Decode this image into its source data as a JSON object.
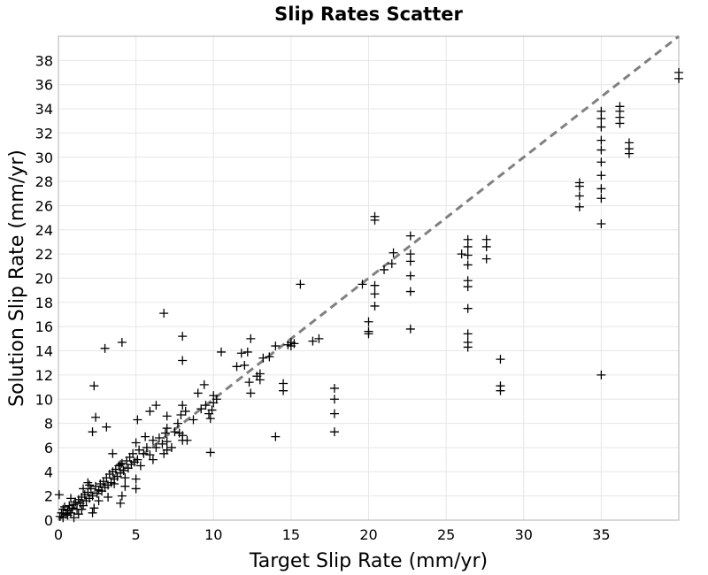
{
  "chart_data": {
    "type": "scatter",
    "title": "Slip Rates Scatter",
    "xlabel": "Target Slip Rate (mm/yr)",
    "ylabel": "Solution Slip Rate (mm/yr)",
    "xlim": [
      0,
      40
    ],
    "ylim": [
      0,
      40
    ],
    "xticks": [
      0,
      5,
      10,
      15,
      20,
      25,
      30,
      35
    ],
    "yticks": [
      0,
      2,
      4,
      6,
      8,
      10,
      12,
      14,
      16,
      18,
      20,
      22,
      24,
      26,
      28,
      30,
      32,
      34,
      36,
      38
    ],
    "grid": true,
    "marker": "+",
    "marker_color": "#000000",
    "reference_line": {
      "style": "dashed",
      "color": "#808080",
      "from": [
        0,
        0
      ],
      "to": [
        40,
        40
      ]
    },
    "points": [
      [
        0.1,
        0.3
      ],
      [
        0.2,
        0.6
      ],
      [
        0.3,
        0.9
      ],
      [
        0.4,
        1.1
      ],
      [
        0.5,
        0.5
      ],
      [
        0.6,
        0.8
      ],
      [
        0.7,
        1.2
      ],
      [
        0.8,
        0.6
      ],
      [
        0.9,
        1.0
      ],
      [
        1.0,
        1.3
      ],
      [
        1.1,
        1.5
      ],
      [
        1.2,
        0.9
      ],
      [
        1.3,
        1.7
      ],
      [
        1.4,
        1.4
      ],
      [
        1.5,
        1.9
      ],
      [
        1.6,
        1.2
      ],
      [
        1.7,
        2.1
      ],
      [
        1.8,
        1.6
      ],
      [
        1.9,
        2.3
      ],
      [
        2.0,
        1.8
      ],
      [
        2.1,
        2.6
      ],
      [
        2.2,
        2.0
      ],
      [
        2.3,
        1.0
      ],
      [
        2.4,
        2.8
      ],
      [
        2.5,
        2.2
      ],
      [
        2.6,
        2.5
      ],
      [
        2.7,
        3.0
      ],
      [
        2.8,
        2.4
      ],
      [
        2.9,
        3.2
      ],
      [
        3.0,
        2.7
      ],
      [
        3.1,
        3.5
      ],
      [
        3.2,
        2.9
      ],
      [
        3.3,
        3.8
      ],
      [
        3.4,
        3.1
      ],
      [
        3.5,
        4.0
      ],
      [
        3.6,
        3.4
      ],
      [
        3.7,
        4.2
      ],
      [
        3.8,
        3.6
      ],
      [
        3.9,
        4.5
      ],
      [
        4.0,
        3.9
      ],
      [
        4.1,
        4.7
      ],
      [
        4.2,
        4.1
      ],
      [
        4.3,
        3.5
      ],
      [
        4.4,
        4.9
      ],
      [
        4.5,
        4.3
      ],
      [
        4.6,
        5.2
      ],
      [
        4.7,
        4.6
      ],
      [
        4.8,
        5.5
      ],
      [
        4.9,
        4.8
      ],
      [
        5.0,
        6.4
      ],
      [
        5.0,
        2.6
      ],
      [
        5.0,
        3.4
      ],
      [
        5.1,
        5.0
      ],
      [
        5.2,
        5.8
      ],
      [
        5.3,
        4.5
      ],
      [
        5.5,
        5.5
      ],
      [
        5.7,
        6.0
      ],
      [
        5.9,
        5.4
      ],
      [
        6.1,
        6.6
      ],
      [
        6.3,
        6.0
      ],
      [
        6.5,
        6.8
      ],
      [
        6.7,
        6.3
      ],
      [
        6.9,
        7.2
      ],
      [
        7.0,
        6.5
      ],
      [
        7.0,
        8.6
      ],
      [
        7.0,
        7.6
      ],
      [
        7.0,
        5.8
      ],
      [
        6.8,
        5.5
      ],
      [
        7.5,
        7.3
      ],
      [
        7.7,
        8.0
      ],
      [
        7.9,
        8.7
      ],
      [
        8.0,
        9.5
      ],
      [
        8.0,
        7.0
      ],
      [
        8.0,
        6.6
      ],
      [
        7.8,
        7.2
      ],
      [
        8.2,
        9.0
      ],
      [
        8.7,
        8.3
      ],
      [
        9.2,
        9.2
      ],
      [
        9.5,
        9.5
      ],
      [
        9.7,
        8.8
      ],
      [
        9.9,
        9.1
      ],
      [
        10.0,
        10.3
      ],
      [
        10.0,
        9.7
      ],
      [
        9.8,
        8.4
      ],
      [
        10.2,
        10.0
      ],
      [
        0.05,
        2.1
      ],
      [
        0.3,
        0.2
      ],
      [
        0.6,
        0.4
      ],
      [
        1.5,
        0.9
      ],
      [
        2.2,
        0.6
      ],
      [
        2.4,
        8.5
      ],
      [
        2.3,
        11.1
      ],
      [
        2.2,
        7.3
      ],
      [
        3.0,
        14.2
      ],
      [
        3.1,
        7.7
      ],
      [
        4.1,
        14.7
      ],
      [
        4.0,
        1.4
      ],
      [
        4.1,
        2.0
      ],
      [
        4.0,
        4.6
      ],
      [
        6.8,
        17.1
      ],
      [
        8.0,
        15.2
      ],
      [
        8.0,
        13.2
      ],
      [
        9.8,
        5.6
      ],
      [
        10.5,
        13.9
      ],
      [
        11.8,
        13.8
      ],
      [
        12.2,
        13.9
      ],
      [
        12.4,
        15.0
      ],
      [
        12.0,
        12.8
      ],
      [
        12.3,
        11.4
      ],
      [
        12.4,
        10.5
      ],
      [
        12.8,
        11.9
      ],
      [
        13.0,
        12.1
      ],
      [
        13.0,
        11.6
      ],
      [
        13.2,
        13.4
      ],
      [
        13.6,
        13.5
      ],
      [
        14.0,
        14.4
      ],
      [
        14.0,
        6.9
      ],
      [
        14.5,
        11.3
      ],
      [
        14.5,
        10.7
      ],
      [
        14.8,
        14.5
      ],
      [
        15.0,
        14.4
      ],
      [
        15.0,
        14.7
      ],
      [
        15.2,
        14.6
      ],
      [
        15.6,
        19.5
      ],
      [
        16.4,
        14.8
      ],
      [
        16.8,
        15.0
      ],
      [
        17.8,
        10.9
      ],
      [
        17.8,
        10.0
      ],
      [
        17.8,
        8.8
      ],
      [
        17.8,
        7.3
      ],
      [
        19.6,
        19.5
      ],
      [
        20.0,
        16.4
      ],
      [
        20.0,
        15.6
      ],
      [
        20.0,
        15.4
      ],
      [
        20.4,
        25.1
      ],
      [
        20.4,
        24.8
      ],
      [
        20.4,
        19.4
      ],
      [
        20.4,
        18.7
      ],
      [
        20.4,
        17.7
      ],
      [
        21.0,
        20.7
      ],
      [
        21.5,
        21.2
      ],
      [
        21.6,
        22.1
      ],
      [
        22.7,
        23.5
      ],
      [
        22.7,
        22.0
      ],
      [
        22.7,
        21.4
      ],
      [
        22.7,
        20.2
      ],
      [
        22.7,
        18.9
      ],
      [
        22.7,
        15.8
      ],
      [
        26.0,
        22.0
      ],
      [
        26.4,
        23.2
      ],
      [
        26.4,
        22.6
      ],
      [
        26.4,
        21.9
      ],
      [
        26.4,
        21.1
      ],
      [
        26.4,
        19.8
      ],
      [
        26.4,
        19.3
      ],
      [
        26.4,
        17.5
      ],
      [
        26.4,
        15.4
      ],
      [
        26.4,
        14.7
      ],
      [
        26.4,
        14.3
      ],
      [
        27.6,
        23.2
      ],
      [
        27.6,
        22.6
      ],
      [
        27.6,
        21.6
      ],
      [
        28.5,
        13.3
      ],
      [
        28.5,
        11.1
      ],
      [
        28.5,
        10.7
      ],
      [
        33.6,
        27.9
      ],
      [
        33.6,
        27.6
      ],
      [
        33.6,
        26.8
      ],
      [
        33.6,
        25.9
      ],
      [
        35.0,
        33.8
      ],
      [
        35.0,
        33.2
      ],
      [
        35.0,
        32.5
      ],
      [
        35.0,
        31.4
      ],
      [
        35.0,
        30.6
      ],
      [
        35.0,
        29.6
      ],
      [
        35.0,
        28.5
      ],
      [
        35.0,
        27.4
      ],
      [
        35.0,
        26.6
      ],
      [
        35.0,
        24.5
      ],
      [
        35.0,
        12.0
      ],
      [
        36.2,
        34.2
      ],
      [
        36.2,
        33.8
      ],
      [
        36.2,
        33.3
      ],
      [
        36.2,
        32.8
      ],
      [
        36.8,
        31.2
      ],
      [
        36.8,
        30.7
      ],
      [
        36.8,
        30.3
      ],
      [
        40.0,
        37.0
      ],
      [
        40.0,
        36.5
      ],
      [
        0.8,
        1.8
      ],
      [
        1.3,
        0.5
      ],
      [
        1.6,
        2.6
      ],
      [
        2.0,
        2.9
      ],
      [
        2.6,
        1.6
      ],
      [
        3.2,
        1.9
      ],
      [
        3.5,
        5.5
      ],
      [
        4.3,
        2.8
      ],
      [
        5.1,
        8.3
      ],
      [
        5.9,
        9.0
      ],
      [
        6.3,
        9.5
      ],
      [
        7.3,
        6.0
      ],
      [
        8.3,
        6.6
      ],
      [
        9.0,
        10.5
      ],
      [
        9.4,
        11.2
      ],
      [
        11.5,
        12.7
      ],
      [
        1.0,
        0.2
      ],
      [
        1.9,
        3.1
      ],
      [
        3.6,
        3.0
      ],
      [
        5.6,
        6.9
      ],
      [
        6.1,
        5.0
      ]
    ]
  }
}
